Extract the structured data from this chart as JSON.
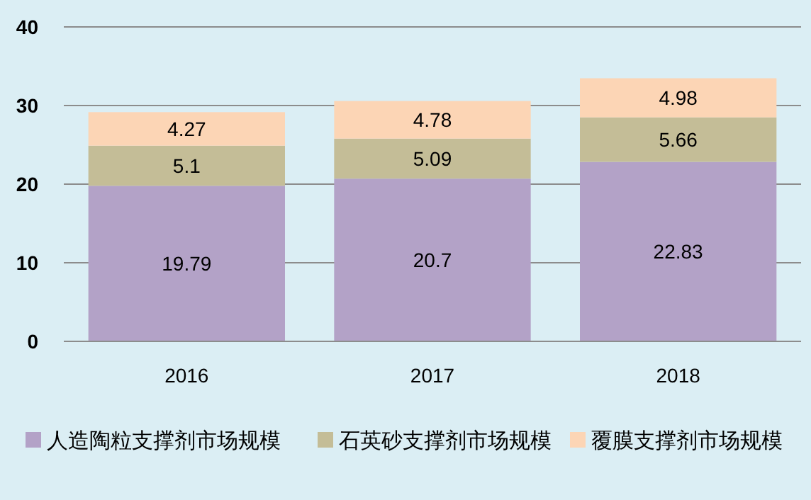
{
  "chart_data": {
    "type": "bar",
    "stacked": true,
    "categories": [
      "2016",
      "2017",
      "2018"
    ],
    "series": [
      {
        "name": "人造陶粒支撑剂市场规模",
        "color": "#b3a2c7",
        "values": [
          19.79,
          20.7,
          22.83
        ]
      },
      {
        "name": "石英砂支撑剂市场规模",
        "color": "#c4bd97",
        "values": [
          5.1,
          5.09,
          5.66
        ]
      },
      {
        "name": "覆膜支撑剂市场规模",
        "color": "#fcd5b5",
        "values": [
          4.27,
          4.78,
          4.98
        ]
      }
    ],
    "ylim": [
      0,
      40
    ],
    "yticks": [
      0,
      10,
      20,
      30,
      40
    ],
    "grid": "y",
    "legend": "bottom",
    "data_labels": true
  }
}
